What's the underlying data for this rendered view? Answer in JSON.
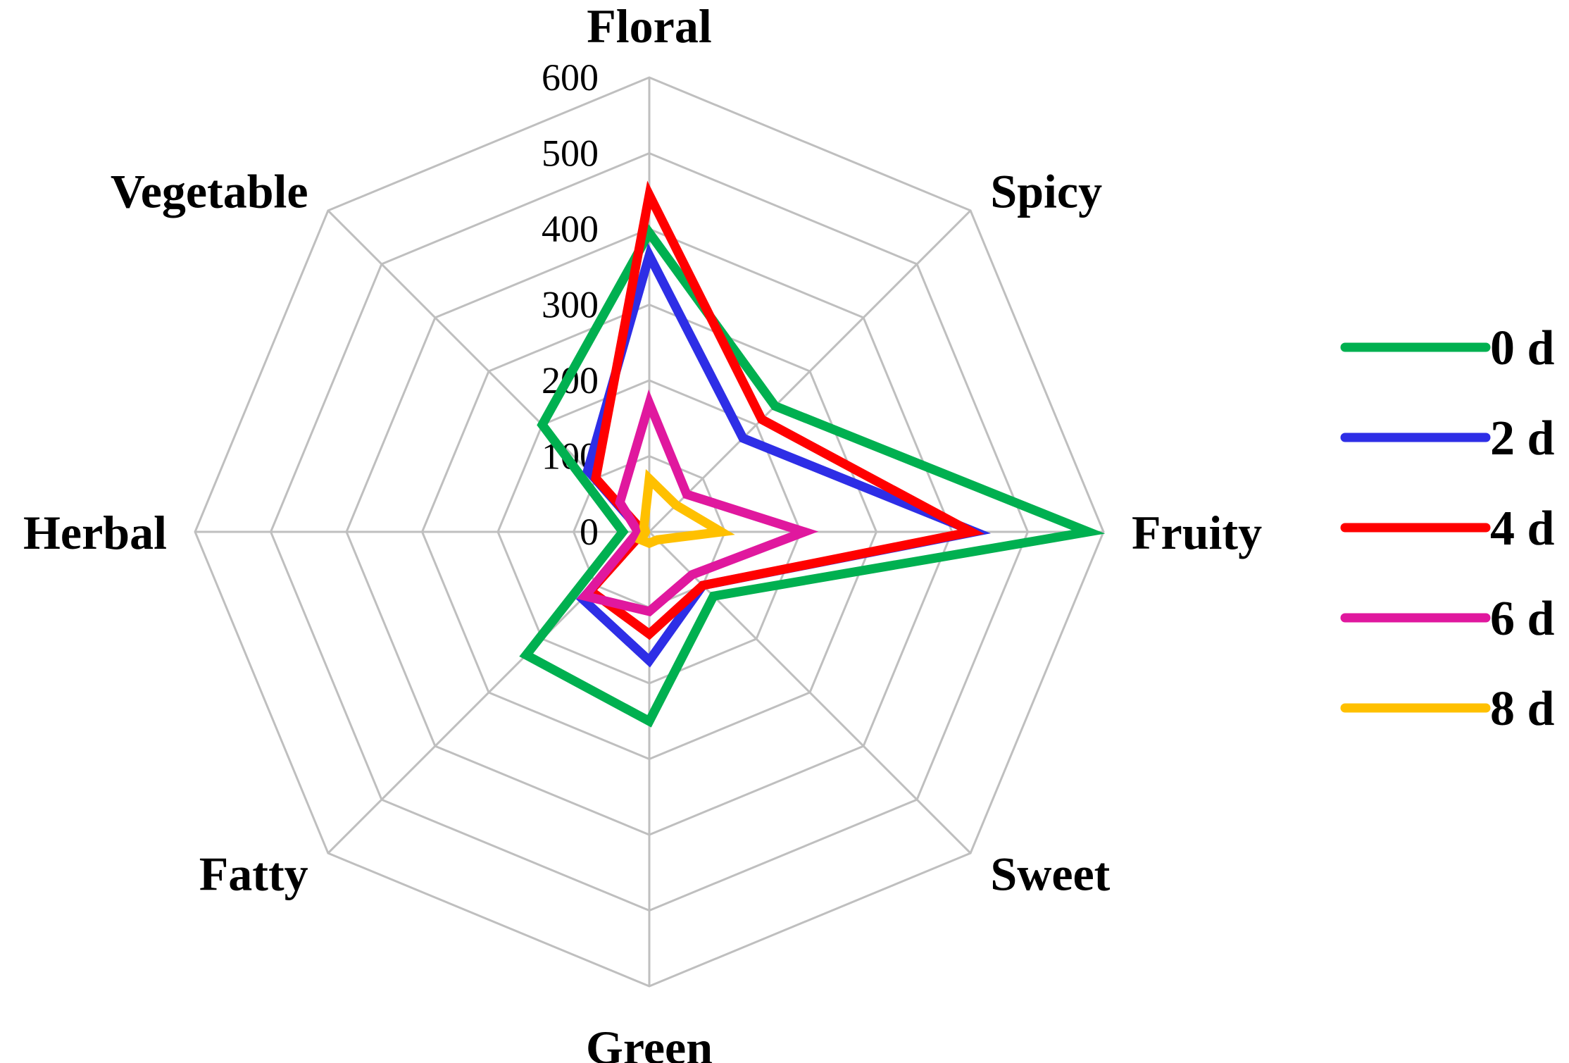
{
  "chart_data": {
    "type": "radar",
    "categories": [
      "Floral",
      "Spicy",
      "Fruity",
      "Sweet",
      "Green",
      "Fatty",
      "Herbal",
      "Vegetable"
    ],
    "rlim": [
      0,
      600
    ],
    "ticks": [
      "0",
      "100",
      "200",
      "300",
      "400",
      "500",
      "600"
    ],
    "grid": true,
    "legend_position": "right",
    "series": [
      {
        "name": "0 d",
        "color": "#00b050",
        "values": [
          395,
          235,
          580,
          120,
          250,
          230,
          35,
          200
        ]
      },
      {
        "name": "2 d",
        "color": "#2e2ee6",
        "values": [
          365,
          175,
          430,
          100,
          170,
          125,
          10,
          115
        ]
      },
      {
        "name": "4 d",
        "color": "#ff0000",
        "values": [
          445,
          210,
          425,
          100,
          135,
          110,
          8,
          100
        ]
      },
      {
        "name": "6 d",
        "color": "#e0189e",
        "values": [
          170,
          70,
          205,
          80,
          105,
          120,
          15,
          55
        ]
      },
      {
        "name": "8 d",
        "color": "#ffc000",
        "values": [
          70,
          50,
          95,
          15,
          15,
          15,
          5,
          10
        ]
      }
    ]
  }
}
